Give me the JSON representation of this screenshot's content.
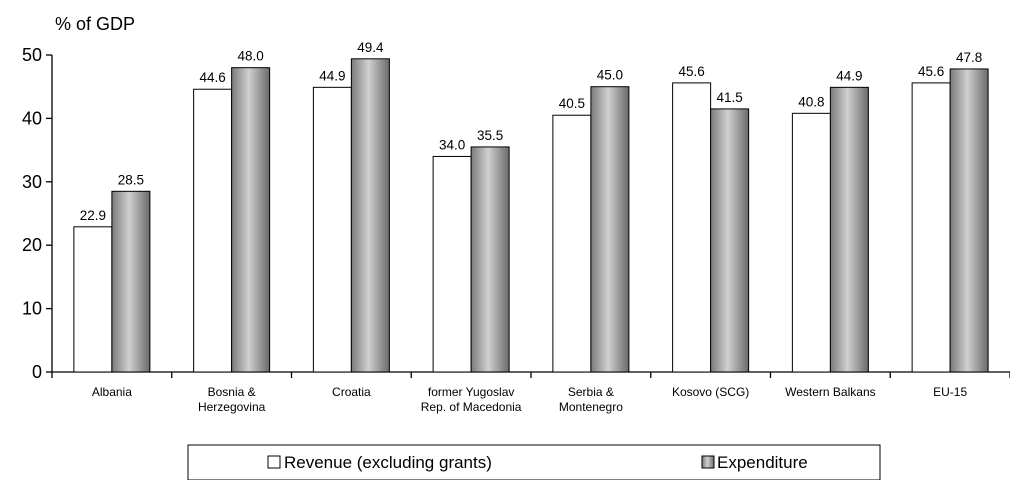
{
  "chart_data": {
    "type": "bar",
    "ylabel": "% of GDP",
    "ylim": [
      0,
      50
    ],
    "yticks": [
      0,
      10,
      20,
      30,
      40,
      50
    ],
    "grid": false,
    "legend_position": "bottom",
    "categories": [
      [
        "Albania"
      ],
      [
        "Bosnia &",
        "Herzegovina"
      ],
      [
        "Croatia"
      ],
      [
        "former Yugoslav",
        "Rep. of Macedonia"
      ],
      [
        "Serbia &",
        "Montenegro"
      ],
      [
        "Kosovo (SCG)"
      ],
      [
        "Western Balkans"
      ],
      [
        "EU-15"
      ]
    ],
    "series": [
      {
        "name": "Revenue (excluding grants)",
        "style": "white",
        "values": [
          22.9,
          44.6,
          44.9,
          34.0,
          40.5,
          45.6,
          40.8,
          45.6
        ],
        "labels": [
          "22.9",
          "44.6",
          "44.9",
          "34.0",
          "40.5",
          "45.6",
          "40.8",
          "45.6"
        ]
      },
      {
        "name": "Expenditure",
        "style": "gray-gradient",
        "values": [
          28.5,
          48.0,
          49.4,
          35.5,
          45.0,
          41.5,
          44.9,
          47.8
        ],
        "labels": [
          "28.5",
          "48.0",
          "49.4",
          "35.5",
          "45.0",
          "41.5",
          "44.9",
          "47.8"
        ]
      }
    ]
  }
}
